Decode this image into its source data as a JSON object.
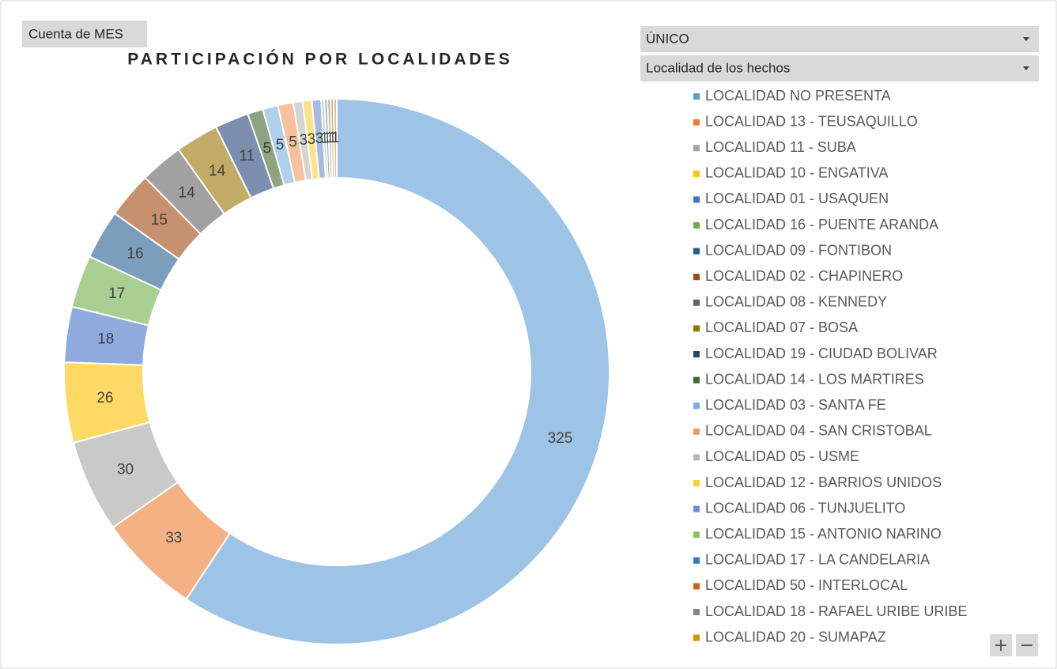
{
  "chart_data": {
    "type": "pie",
    "title": "PARTICIPACIÓN POR LOCALIDADES",
    "value_field_button": "Cuenta de MES",
    "filter_field_button": "ÚNICO",
    "axis_field_button": "Localidad de los hechos",
    "hole": true,
    "categories": [
      "LOCALIDAD NO PRESENTA",
      "LOCALIDAD 13 - TEUSAQUILLO",
      "LOCALIDAD 11 - SUBA",
      "LOCALIDAD 10 - ENGATIVA",
      "LOCALIDAD 01 - USAQUEN",
      "LOCALIDAD 16 - PUENTE ARANDA",
      "LOCALIDAD 09 - FONTIBON",
      "LOCALIDAD 02 - CHAPINERO",
      "LOCALIDAD 08 - KENNEDY",
      "LOCALIDAD 07 - BOSA",
      "LOCALIDAD 19 - CIUDAD BOLIVAR",
      "LOCALIDAD 14 - LOS MARTIRES",
      "LOCALIDAD 03 - SANTA FE",
      "LOCALIDAD 04 - SAN CRISTOBAL",
      "LOCALIDAD 05 - USME",
      "LOCALIDAD 12 - BARRIOS UNIDOS",
      "LOCALIDAD 06 - TUNJUELITO",
      "LOCALIDAD 15 - ANTONIO NARINO",
      "LOCALIDAD 17 - LA CANDELARIA",
      "LOCALIDAD 50 - INTERLOCAL",
      "LOCALIDAD 18 - RAFAEL URIBE URIBE",
      "LOCALIDAD 20 - SUMAPAZ"
    ],
    "values": [
      325,
      33,
      30,
      26,
      18,
      17,
      16,
      15,
      14,
      14,
      11,
      5,
      5,
      5,
      3,
      3,
      3,
      1,
      1,
      1,
      1,
      1
    ],
    "colors": [
      "#5b9bd5",
      "#ed7d31",
      "#a5a5a5",
      "#ffc000",
      "#4472c4",
      "#70ad47",
      "#255e91",
      "#9e480e",
      "#636363",
      "#997300",
      "#264478",
      "#43682b",
      "#7cafdd",
      "#f1975a",
      "#b7b7b7",
      "#ffcd33",
      "#698ed0",
      "#8cc168",
      "#327dc2",
      "#d26012",
      "#848484",
      "#cc9a00"
    ]
  }
}
